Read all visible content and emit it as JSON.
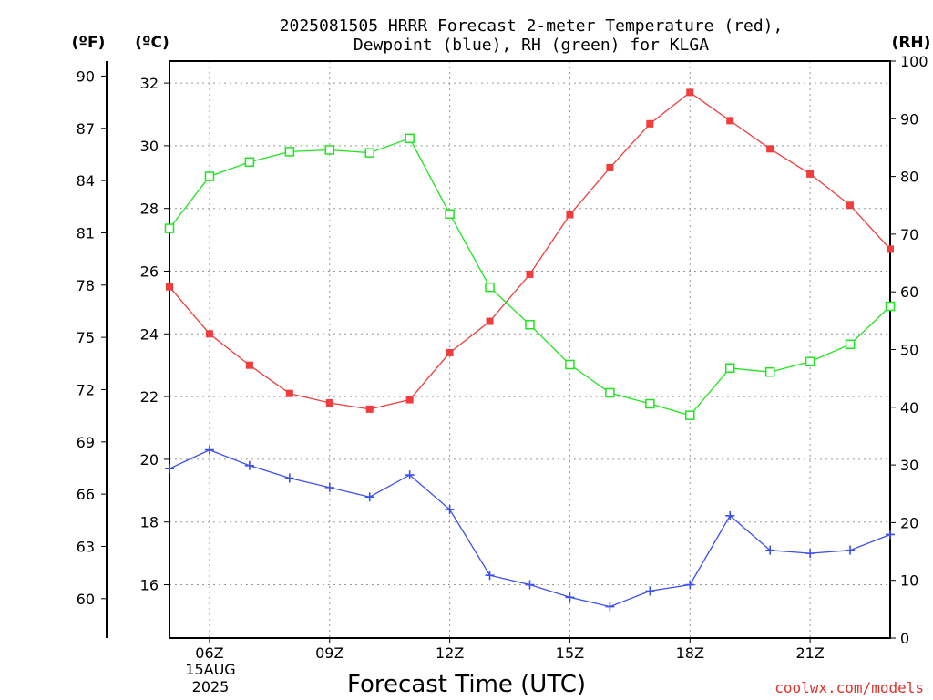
{
  "chart_data": {
    "type": "line",
    "title_line1": "2025081505 HRRR Forecast 2-meter Temperature (red),",
    "title_line2": "Dewpoint (blue), RH (green) for KLGA",
    "xlabel": "Forecast Time (UTC)",
    "credit": "coolwx.com/models",
    "left_far_unit": "(ºF)",
    "left_unit": "(ºC)",
    "right_unit": "(RH)",
    "date_line1": "15AUG",
    "date_line2": "2025",
    "x_ticks": [
      {
        "hour": 6,
        "label": "06Z"
      },
      {
        "hour": 9,
        "label": "09Z"
      },
      {
        "hour": 12,
        "label": "12Z"
      },
      {
        "hour": 15,
        "label": "15Z"
      },
      {
        "hour": 18,
        "label": "18Z"
      },
      {
        "hour": 21,
        "label": "21Z"
      }
    ],
    "xlim": [
      5,
      23
    ],
    "celsius_ylim": [
      14.3,
      32.7
    ],
    "celsius_ticks": [
      16,
      18,
      20,
      22,
      24,
      26,
      28,
      30,
      32
    ],
    "fahrenheit_ticks": [
      60,
      63,
      66,
      69,
      72,
      75,
      78,
      81,
      84,
      87,
      90
    ],
    "rh_ylim": [
      0,
      100
    ],
    "rh_ticks": [
      0,
      10,
      20,
      30,
      40,
      50,
      60,
      70,
      80,
      90,
      100
    ],
    "x": [
      5,
      6,
      7,
      8,
      9,
      10,
      11,
      12,
      13,
      14,
      15,
      16,
      17,
      18,
      19,
      20,
      21,
      22,
      23
    ],
    "series": [
      {
        "name": "Temperature",
        "axis": "celsius",
        "color": "#f03c3c",
        "marker": "filled-square",
        "values": [
          25.5,
          24.0,
          23.0,
          22.1,
          21.8,
          21.6,
          21.9,
          23.4,
          24.4,
          25.9,
          27.8,
          29.3,
          30.7,
          31.7,
          30.8,
          29.9,
          29.1,
          28.1,
          26.7
        ]
      },
      {
        "name": "Dewpoint",
        "axis": "celsius",
        "color": "#3c50f0",
        "marker": "plus",
        "values": [
          19.7,
          20.3,
          19.8,
          19.4,
          19.1,
          18.8,
          19.5,
          18.4,
          16.3,
          16.0,
          15.6,
          15.3,
          15.8,
          16.0,
          18.2,
          17.1,
          17.0,
          17.1,
          17.6
        ]
      },
      {
        "name": "RH",
        "axis": "rh",
        "color": "#1ee61e",
        "marker": "open-square",
        "values": [
          71,
          80,
          82.5,
          84.3,
          84.6,
          84.1,
          86.6,
          73.5,
          60.8,
          54.3,
          47.4,
          42.5,
          40.6,
          38.6,
          46.8,
          46.1,
          47.9,
          50.9,
          57.5
        ]
      }
    ]
  }
}
